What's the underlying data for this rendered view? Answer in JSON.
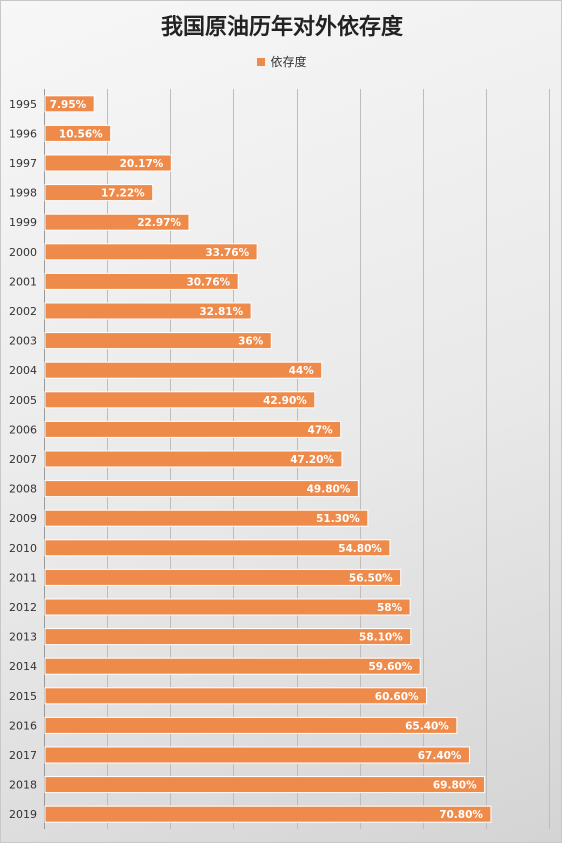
{
  "chart_data": {
    "type": "bar",
    "orientation": "horizontal",
    "title": "我国原油历年对外依存度",
    "legend_position": "top",
    "series": [
      {
        "name": "依存度",
        "color": "#ee8a4a",
        "values": [
          7.95,
          10.56,
          20.17,
          17.22,
          22.97,
          33.76,
          30.76,
          32.81,
          36,
          44,
          42.9,
          47,
          47.2,
          49.8,
          51.3,
          54.8,
          56.5,
          58,
          58.1,
          59.6,
          60.6,
          65.4,
          67.4,
          69.8,
          70.8
        ],
        "data_labels": [
          "7.95%",
          "10.56%",
          "20.17%",
          "17.22%",
          "22.97%",
          "33.76%",
          "30.76%",
          "32.81%",
          "36%",
          "44%",
          "42.90%",
          "47%",
          "47.20%",
          "49.80%",
          "51.30%",
          "54.80%",
          "56.50%",
          "58%",
          "58.10%",
          "59.60%",
          "60.60%",
          "65.40%",
          "67.40%",
          "69.80%",
          "70.80%"
        ]
      }
    ],
    "categories": [
      "1995",
      "1996",
      "1997",
      "1998",
      "1999",
      "2000",
      "2001",
      "2002",
      "2003",
      "2004",
      "2005",
      "2006",
      "2007",
      "2008",
      "2009",
      "2010",
      "2011",
      "2012",
      "2013",
      "2014",
      "2015",
      "2016",
      "2017",
      "2018",
      "2019"
    ],
    "xlim": [
      0,
      80
    ],
    "x_gridlines": true,
    "xlabel": "",
    "ylabel": ""
  }
}
